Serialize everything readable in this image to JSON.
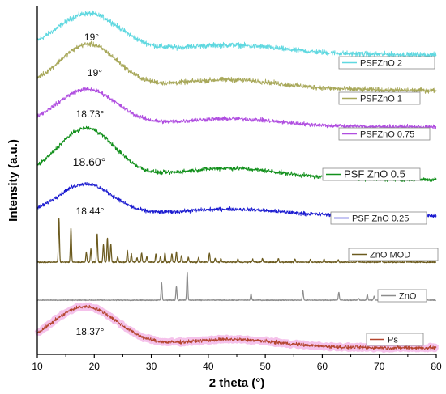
{
  "chart_data": {
    "type": "line",
    "xlabel": "2 theta (°)",
    "ylabel": "Intensity (a.u.)",
    "xlim": [
      10,
      80
    ],
    "xticks": [
      10,
      20,
      30,
      40,
      50,
      60,
      70,
      80
    ],
    "yticks": false,
    "grid": false,
    "series": [
      {
        "name": "PSFZnO 2",
        "color": "#5fd8e0",
        "broad_peak_deg": 19,
        "peak_label": "19°",
        "noisy": true
      },
      {
        "name": "PSFZnO 1",
        "color": "#a8a85a",
        "broad_peak_deg": 19,
        "peak_label": "19°",
        "noisy": true
      },
      {
        "name": "PSFZnO 0.75",
        "color": "#b04ee0",
        "broad_peak_deg": 18.73,
        "peak_label": "18.73°",
        "noisy": true
      },
      {
        "name": "PSF ZnO 0.5",
        "color": "#12901c",
        "broad_peak_deg": 18.6,
        "peak_label": "18.60°",
        "noisy": true
      },
      {
        "name": "PSF ZnO 0.25",
        "color": "#1c1cd0",
        "broad_peak_deg": 18.44,
        "peak_label": "18.44°",
        "noisy": true
      },
      {
        "name": "ZnO MOD",
        "color": "#6b5a1e",
        "peaks": [
          [
            13.8,
            0.95
          ],
          [
            15.9,
            0.75
          ],
          [
            18.6,
            0.22
          ],
          [
            19.4,
            0.28
          ],
          [
            20.5,
            0.62
          ],
          [
            21.6,
            0.38
          ],
          [
            22.3,
            0.52
          ],
          [
            22.9,
            0.4
          ],
          [
            24.1,
            0.12
          ],
          [
            25.8,
            0.25
          ],
          [
            26.5,
            0.18
          ],
          [
            27.5,
            0.1
          ],
          [
            28.3,
            0.2
          ],
          [
            29.2,
            0.12
          ],
          [
            30.8,
            0.18
          ],
          [
            31.6,
            0.12
          ],
          [
            32.4,
            0.2
          ],
          [
            33.6,
            0.18
          ],
          [
            34.4,
            0.22
          ],
          [
            35.3,
            0.15
          ],
          [
            36.5,
            0.1
          ],
          [
            38.3,
            0.1
          ],
          [
            40.2,
            0.2
          ],
          [
            41.2,
            0.08
          ],
          [
            42.2,
            0.08
          ],
          [
            45.2,
            0.07
          ],
          [
            47.8,
            0.06
          ],
          [
            49.5,
            0.08
          ],
          [
            52.3,
            0.08
          ],
          [
            55.2,
            0.06
          ],
          [
            57.9,
            0.06
          ],
          [
            60.3,
            0.07
          ],
          [
            62.8,
            0.05
          ],
          [
            66.2,
            0.05
          ],
          [
            70.4,
            0.05
          ],
          [
            74.6,
            0.05
          ]
        ]
      },
      {
        "name": "ZnO",
        "color": "#8c8c8c",
        "peaks": [
          [
            31.8,
            0.53
          ],
          [
            34.4,
            0.42
          ],
          [
            36.3,
            0.86
          ],
          [
            47.5,
            0.19
          ],
          [
            56.6,
            0.29
          ],
          [
            62.9,
            0.24
          ],
          [
            66.4,
            0.05
          ],
          [
            67.9,
            0.17
          ],
          [
            69.1,
            0.12
          ],
          [
            72.6,
            0.03
          ],
          [
            77.0,
            0.05
          ]
        ]
      },
      {
        "name": "Ps",
        "color": "#b4452e",
        "broad_peak_deg": 18.37,
        "peak_label": "18.37°",
        "noisy": true,
        "halo_color": "#f3b3e6"
      }
    ]
  }
}
